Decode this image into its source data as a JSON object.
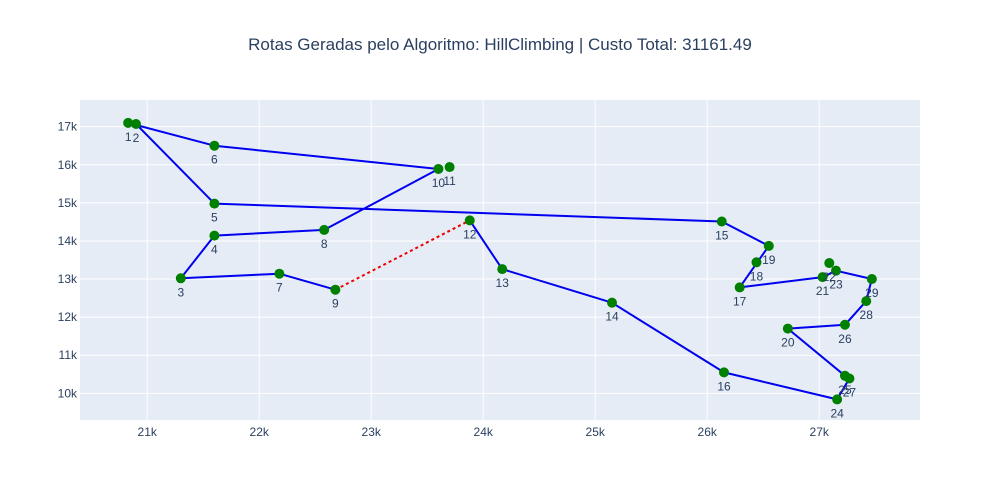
{
  "chart_data": {
    "type": "line",
    "title": "Rotas Geradas pelo Algoritmo: HillClimbing | Custo Total: 31161.49",
    "xlabel": "",
    "ylabel": "",
    "xlim": [
      20400,
      27900
    ],
    "ylim": [
      9300,
      17700
    ],
    "xticks": [
      21000,
      22000,
      23000,
      24000,
      25000,
      26000,
      27000
    ],
    "xtick_labels": [
      "21k",
      "22k",
      "23k",
      "24k",
      "25k",
      "26k",
      "27k"
    ],
    "yticks": [
      10000,
      11000,
      12000,
      13000,
      14000,
      15000,
      16000,
      17000
    ],
    "ytick_labels": [
      "10k",
      "11k",
      "12k",
      "13k",
      "14k",
      "15k",
      "16k",
      "17k"
    ],
    "grid": true,
    "colors": {
      "route": "#0000ee",
      "return_leg": "#ee0000",
      "marker": "#008000",
      "plot_bg": "#e5ecf6",
      "grid": "#ffffff",
      "text": "#2a3f5f"
    },
    "points": [
      {
        "label": "1",
        "x": 20830,
        "y": 17100
      },
      {
        "label": "2",
        "x": 20900,
        "y": 17070
      },
      {
        "label": "3",
        "x": 21300,
        "y": 13020
      },
      {
        "label": "4",
        "x": 21600,
        "y": 14140
      },
      {
        "label": "5",
        "x": 21600,
        "y": 14980
      },
      {
        "label": "6",
        "x": 21600,
        "y": 16500
      },
      {
        "label": "7",
        "x": 22180,
        "y": 13140
      },
      {
        "label": "8",
        "x": 22580,
        "y": 14290
      },
      {
        "label": "9",
        "x": 22680,
        "y": 12720
      },
      {
        "label": "10",
        "x": 23600,
        "y": 15890
      },
      {
        "label": "11",
        "x": 23700,
        "y": 15940
      },
      {
        "label": "12",
        "x": 23880,
        "y": 14540
      },
      {
        "label": "13",
        "x": 24170,
        "y": 13260
      },
      {
        "label": "14",
        "x": 25150,
        "y": 12380
      },
      {
        "label": "15",
        "x": 26130,
        "y": 14510
      },
      {
        "label": "16",
        "x": 26150,
        "y": 10550
      },
      {
        "label": "17",
        "x": 26290,
        "y": 12780
      },
      {
        "label": "18",
        "x": 26440,
        "y": 13440
      },
      {
        "label": "19",
        "x": 26550,
        "y": 13870
      },
      {
        "label": "20",
        "x": 26720,
        "y": 11700
      },
      {
        "label": "21",
        "x": 27030,
        "y": 13050
      },
      {
        "label": "22",
        "x": 27090,
        "y": 13420
      },
      {
        "label": "23",
        "x": 27150,
        "y": 13220
      },
      {
        "label": "24",
        "x": 27160,
        "y": 9840
      },
      {
        "label": "25",
        "x": 27230,
        "y": 10460
      },
      {
        "label": "26",
        "x": 27230,
        "y": 11800
      },
      {
        "label": "27",
        "x": 27270,
        "y": 10390
      },
      {
        "label": "28",
        "x": 27420,
        "y": 12420
      },
      {
        "label": "29",
        "x": 27470,
        "y": 13000
      }
    ],
    "route": [
      "12",
      "13",
      "14",
      "16",
      "24",
      "27",
      "25",
      "20",
      "26",
      "28",
      "29",
      "23",
      "21",
      "17",
      "19",
      "15",
      "5",
      "2",
      "1",
      "6",
      "10",
      "8",
      "4",
      "3",
      "7",
      "9"
    ],
    "return_leg": [
      "9",
      "12"
    ]
  }
}
